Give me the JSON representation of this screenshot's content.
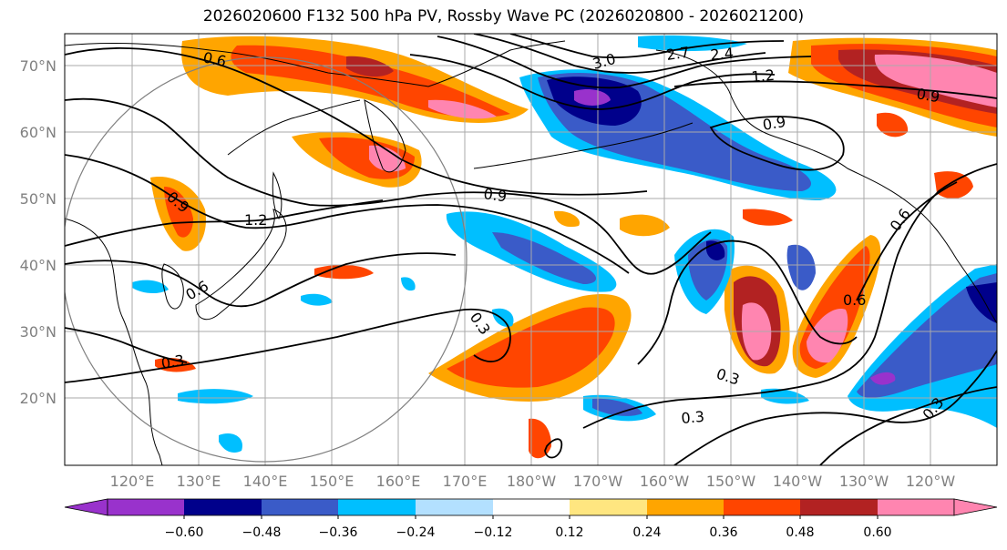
{
  "title": "2026020600 F132 500 hPa PV, Rossby Wave PC (2026020800 - 2026021200)",
  "lat_labels": [
    "70°N",
    "60°N",
    "50°N",
    "40°N",
    "30°N",
    "20°N"
  ],
  "lon_labels": [
    "120°E",
    "130°E",
    "140°E",
    "150°E",
    "160°E",
    "170°E",
    "180°W",
    "170°W",
    "160°W",
    "150°W",
    "140°W",
    "130°W",
    "120°W"
  ],
  "colorbar": {
    "tick_labels": [
      "−0.60",
      "−0.48",
      "−0.36",
      "−0.24",
      "−0.12",
      "0.12",
      "0.24",
      "0.36",
      "0.48",
      "0.60"
    ],
    "colors": [
      "#9932cc",
      "#00008b",
      "#3a5bc8",
      "#00bfff",
      "#b3e0ff",
      "#ffffff",
      "#ffe680",
      "#ffa500",
      "#ff4500",
      "#b22222",
      "#ff85b0"
    ]
  },
  "contour_labels": [
    "0.6",
    "0.9",
    "1.2",
    "0.9",
    "1.2",
    "0.9",
    "0.6",
    "0.3",
    "0.3",
    "0.3",
    "0.3",
    "0.6",
    "3.0",
    "2.7",
    "2.4",
    "1.2",
    "0.9",
    "0.9",
    "0.6",
    "0.3"
  ],
  "colors": {
    "fill_positive": "#ff4500",
    "fill_negative": "#00008b",
    "contour": "#000000",
    "grid": "#aaaaaa"
  }
}
